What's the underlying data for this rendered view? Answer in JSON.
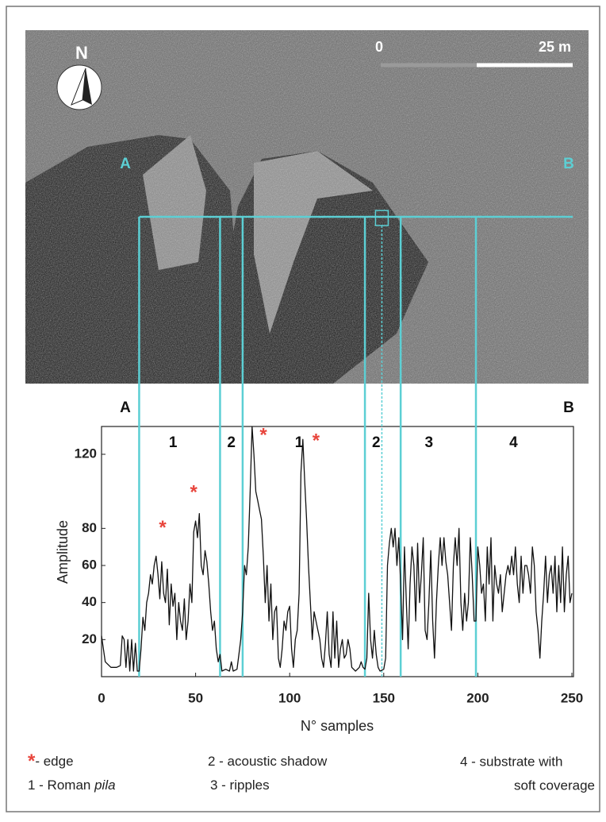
{
  "image": {
    "north_label": "N",
    "scale_start": "0",
    "scale_end": "25 m",
    "start_label": "A",
    "end_label": "B"
  },
  "chart_data": {
    "type": "line",
    "color": "#111111",
    "x_label": "N° samples",
    "y_label": "Amplitude",
    "xlim": [
      0,
      250
    ],
    "ylim": [
      0,
      135
    ],
    "xticks": [
      0,
      50,
      100,
      150,
      200,
      250
    ],
    "yticks": [
      20,
      40,
      60,
      80,
      120
    ],
    "x": [
      0,
      2,
      5,
      8,
      10,
      11,
      12,
      13,
      14,
      15,
      16,
      17,
      18,
      19,
      20,
      21,
      22,
      23,
      24,
      25,
      26,
      27,
      28,
      29,
      30,
      31,
      32,
      33,
      34,
      35,
      36,
      37,
      38,
      39,
      40,
      41,
      42,
      43,
      44,
      45,
      46,
      47,
      48,
      49,
      50,
      51,
      52,
      53,
      54,
      55,
      56,
      57,
      58,
      59,
      60,
      61,
      62,
      63,
      64,
      66,
      68,
      69,
      70,
      72,
      73,
      74,
      75,
      76,
      77,
      78,
      79,
      80,
      81,
      82,
      83,
      84,
      85,
      86,
      87,
      88,
      89,
      90,
      91,
      92,
      93,
      94,
      95,
      96,
      97,
      98,
      99,
      100,
      101,
      102,
      103,
      104,
      105,
      106,
      107,
      108,
      109,
      110,
      111,
      112,
      113,
      114,
      115,
      116,
      117,
      118,
      119,
      120,
      121,
      122,
      123,
      124,
      125,
      126,
      127,
      128,
      129,
      130,
      131,
      132,
      133,
      135,
      137,
      138,
      139,
      140,
      141,
      142,
      143,
      144,
      145,
      146,
      147,
      148,
      150,
      151,
      152,
      153,
      154,
      155,
      156,
      157,
      158,
      159,
      160,
      161,
      162,
      163,
      164,
      165,
      166,
      167,
      168,
      169,
      170,
      171,
      172,
      173,
      174,
      175,
      176,
      177,
      178,
      179,
      180,
      181,
      182,
      183,
      184,
      185,
      186,
      187,
      188,
      189,
      190,
      191,
      192,
      193,
      194,
      195,
      196,
      197,
      198,
      199,
      200,
      201,
      202,
      203,
      204,
      205,
      206,
      207,
      208,
      209,
      210,
      211,
      212,
      213,
      214,
      215,
      216,
      217,
      218,
      219,
      220,
      221,
      222,
      223,
      224,
      225,
      226,
      227,
      228,
      229,
      230,
      231,
      232,
      233,
      234,
      235,
      236,
      237,
      238,
      239,
      240,
      241,
      242,
      243,
      244,
      245,
      246,
      247,
      248,
      249,
      250
    ],
    "values": [
      22,
      8,
      5,
      5,
      6,
      22,
      20,
      5,
      20,
      3,
      20,
      3,
      18,
      3,
      3,
      15,
      32,
      25,
      40,
      45,
      55,
      50,
      60,
      65,
      55,
      42,
      62,
      45,
      40,
      58,
      28,
      50,
      38,
      45,
      20,
      40,
      30,
      25,
      42,
      20,
      30,
      50,
      40,
      78,
      84,
      75,
      88,
      60,
      55,
      68,
      62,
      50,
      35,
      25,
      30,
      15,
      8,
      12,
      3,
      4,
      3,
      8,
      3,
      4,
      12,
      20,
      35,
      60,
      55,
      70,
      100,
      135,
      120,
      100,
      95,
      90,
      85,
      65,
      40,
      60,
      30,
      50,
      20,
      35,
      38,
      10,
      5,
      15,
      30,
      25,
      35,
      38,
      15,
      5,
      20,
      25,
      45,
      110,
      128,
      105,
      85,
      60,
      40,
      20,
      35,
      30,
      25,
      20,
      10,
      5,
      18,
      35,
      12,
      5,
      35,
      10,
      30,
      5,
      15,
      20,
      10,
      12,
      20,
      15,
      5,
      3,
      5,
      8,
      5,
      4,
      10,
      45,
      20,
      10,
      25,
      12,
      5,
      3,
      4,
      10,
      60,
      72,
      80,
      70,
      80,
      60,
      75,
      50,
      20,
      70,
      40,
      15,
      50,
      70,
      60,
      30,
      72,
      40,
      55,
      75,
      25,
      20,
      40,
      68,
      30,
      10,
      40,
      60,
      75,
      60,
      75,
      62,
      55,
      40,
      25,
      60,
      75,
      60,
      80,
      40,
      25,
      45,
      30,
      40,
      75,
      55,
      30,
      30,
      70,
      60,
      45,
      50,
      30,
      70,
      50,
      75,
      30,
      60,
      50,
      45,
      55,
      35,
      45,
      55,
      60,
      55,
      65,
      55,
      70,
      50,
      40,
      65,
      45,
      60,
      60,
      55,
      45,
      70,
      60,
      35,
      25,
      10,
      30,
      45,
      65,
      40,
      55,
      60,
      45,
      65,
      35,
      60,
      40,
      70,
      35,
      55,
      65,
      40,
      45
    ],
    "sections": [
      {
        "label": "1",
        "x": 38
      },
      {
        "label": "2",
        "x": 69
      },
      {
        "label": "1",
        "x": 105
      },
      {
        "label": "2",
        "x": 146
      },
      {
        "label": "3",
        "x": 174
      },
      {
        "label": "4",
        "x": 219
      }
    ],
    "section_y": 126,
    "annotations": [
      {
        "text": "*",
        "x": 32.5,
        "y": 82
      },
      {
        "text": "*",
        "x": 49,
        "y": 101
      },
      {
        "text": "*",
        "x": 86,
        "y": 132
      },
      {
        "text": "*",
        "x": 114,
        "y": 129
      }
    ],
    "annotation_color": "#e8453c",
    "dividers": [
      20,
      63,
      75,
      140,
      159,
      199
    ],
    "dashed_dividers": [
      149
    ],
    "divider_color": "#5ccfd4"
  },
  "legend": {
    "items": [
      {
        "symbol": "*",
        "text": "- edge"
      },
      {
        "text": "1 - Roman ",
        "italic": "pila"
      },
      {
        "text": "2 - acoustic shadow"
      },
      {
        "text": "3 - ripples"
      },
      {
        "lines": [
          "4 - substrate with",
          "soft coverage"
        ]
      }
    ]
  }
}
